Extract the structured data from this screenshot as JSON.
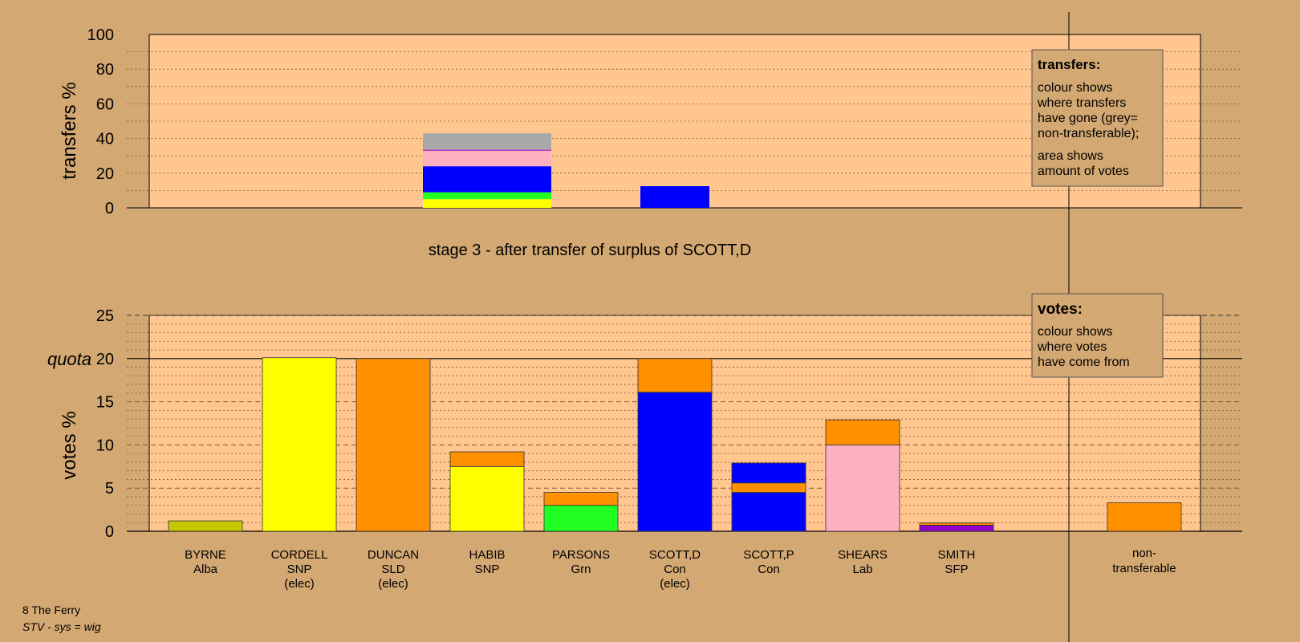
{
  "stage_title": "stage 3 - after transfer of surplus of SCOTT,D",
  "footer": {
    "line1": "8 The Ferry",
    "line2": "STV - sys = wig"
  },
  "colors": {
    "background": "#d4a872",
    "plot_bg": "#ffc690",
    "Alba": "#c8c800",
    "SNP": "#ffff00",
    "SLD": "#ff9000",
    "Grn": "#22ff22",
    "Con": "#0000ff",
    "Lab": "#ffb0c0",
    "SFP": "#9000c8",
    "non_transferable": "#a8a8a8",
    "nt_bar": "#ff9000"
  },
  "legend_transfers": {
    "title": "transfers:",
    "line1": "colour shows",
    "line2": "where transfers",
    "line3": "have gone (grey=",
    "line4": "non-transferable);",
    "line5": "area shows",
    "line6": "amount of votes"
  },
  "legend_votes": {
    "title": "votes:",
    "line1": "colour shows",
    "line2": "where votes",
    "line3": "have come from"
  },
  "chart_data": [
    {
      "type": "bar",
      "stacked": true,
      "ylabel": "transfers %",
      "ylim": [
        0,
        100
      ],
      "yticks": [
        0,
        20,
        40,
        60,
        80,
        100
      ],
      "grid": true,
      "bars": [
        {
          "column": "HABIB",
          "segments": [
            {
              "to": "SNP",
              "value": 5
            },
            {
              "to": "Grn",
              "value": 4
            },
            {
              "to": "Con",
              "value": 15
            },
            {
              "to": "Lab",
              "value": 9
            },
            {
              "to": "SFP",
              "value": 0.5
            },
            {
              "to": "non_transferable",
              "value": 9.5
            }
          ]
        },
        {
          "column": "SCOTT,D",
          "segments": [
            {
              "to": "Con",
              "value": 12.5
            }
          ]
        }
      ]
    },
    {
      "type": "bar",
      "stacked": true,
      "ylabel": "votes %",
      "ylim": [
        0,
        25
      ],
      "yticks": [
        0,
        5,
        10,
        15,
        20,
        25
      ],
      "quota": {
        "label": "quota",
        "value": 20
      },
      "grid": true,
      "candidates": [
        {
          "name": "BYRNE",
          "party": "Alba",
          "elected": "",
          "segments": [
            {
              "from": "Alba",
              "value": 1.2
            }
          ]
        },
        {
          "name": "CORDELL",
          "party": "SNP",
          "elected": "(elec)",
          "segments": [
            {
              "from": "SNP",
              "value": 20.1
            }
          ]
        },
        {
          "name": "DUNCAN",
          "party": "SLD",
          "elected": "(elec)",
          "segments": [
            {
              "from": "SLD",
              "value": 20.0
            }
          ]
        },
        {
          "name": "HABIB",
          "party": "SNP",
          "elected": "",
          "segments": [
            {
              "from": "SNP",
              "value": 7.5
            },
            {
              "from": "SLD",
              "value": 1.7
            }
          ]
        },
        {
          "name": "PARSONS",
          "party": "Grn",
          "elected": "",
          "segments": [
            {
              "from": "Grn",
              "value": 3.0
            },
            {
              "from": "SLD",
              "value": 1.5
            }
          ]
        },
        {
          "name": "SCOTT,D",
          "party": "Con",
          "elected": "(elec)",
          "segments": [
            {
              "from": "Con",
              "value": 16.1
            },
            {
              "from": "SLD",
              "value": 3.9
            }
          ]
        },
        {
          "name": "SCOTT,P",
          "party": "Con",
          "elected": "",
          "segments": [
            {
              "from": "Con",
              "value": 4.5
            },
            {
              "from": "SLD",
              "value": 1.1
            },
            {
              "from": "Con",
              "value": 2.3
            }
          ]
        },
        {
          "name": "SHEARS",
          "party": "Lab",
          "elected": "",
          "segments": [
            {
              "from": "Lab",
              "value": 10.0
            },
            {
              "from": "SLD",
              "value": 2.9
            }
          ]
        },
        {
          "name": "SMITH",
          "party": "SFP",
          "elected": "",
          "segments": [
            {
              "from": "SFP",
              "value": 0.7
            },
            {
              "from": "SLD",
              "value": 0.25
            }
          ]
        }
      ],
      "non_transferable": {
        "line1": "non-",
        "line2": "transferable",
        "value": 3.3
      }
    }
  ]
}
